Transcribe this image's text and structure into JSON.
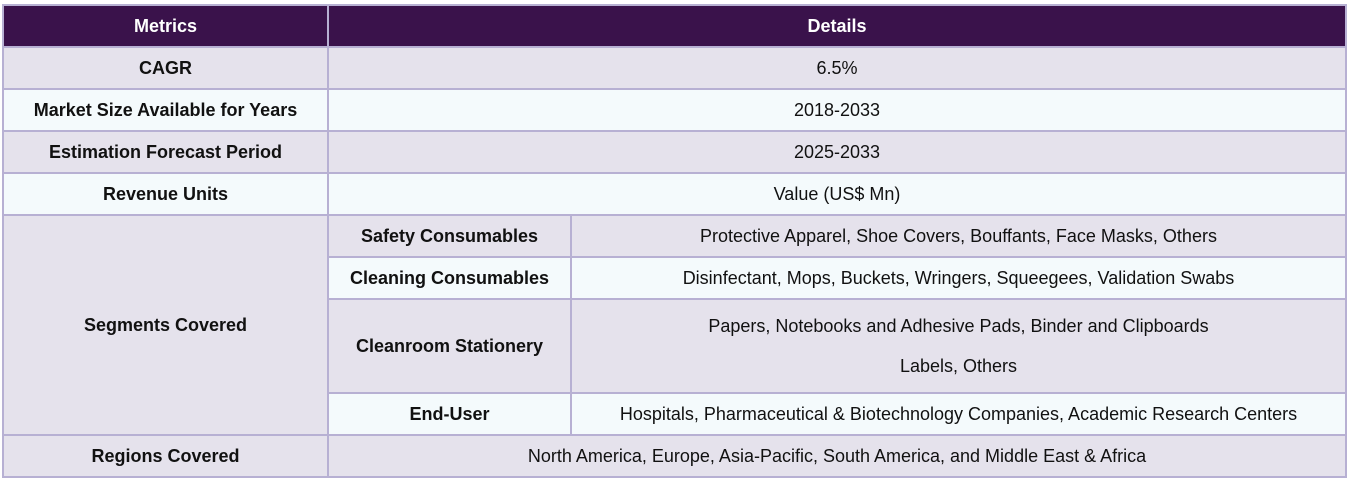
{
  "table": {
    "headers": [
      "Metrics",
      "Details"
    ],
    "rows": [
      {
        "metric": "CAGR",
        "detail": "6.5%"
      },
      {
        "metric": "Market Size Available for Years",
        "detail": "2018-2033"
      },
      {
        "metric": "Estimation Forecast Period",
        "detail": "2025-2033"
      },
      {
        "metric": "Revenue Units",
        "detail": "Value (US$ Mn)"
      }
    ],
    "segments": {
      "label": "Segments Covered",
      "items": [
        {
          "name": "Safety Consumables",
          "values": [
            "Protective Apparel, Shoe Covers, Bouffants, Face Masks, Others"
          ]
        },
        {
          "name": "Cleaning Consumables",
          "values": [
            "Disinfectant, Mops, Buckets, Wringers, Squeegees, Validation Swabs"
          ]
        },
        {
          "name": "Cleanroom Stationery",
          "values": [
            "Papers, Notebooks and Adhesive Pads, Binder and Clipboards",
            "Labels, Others"
          ]
        },
        {
          "name": "End-User",
          "values": [
            "Hospitals, Pharmaceutical & Biotechnology Companies, Academic Research Centers"
          ]
        }
      ]
    },
    "regions": {
      "label": "Regions Covered",
      "detail": "North America, Europe, Asia-Pacific, South America, and Middle East & Africa"
    }
  }
}
